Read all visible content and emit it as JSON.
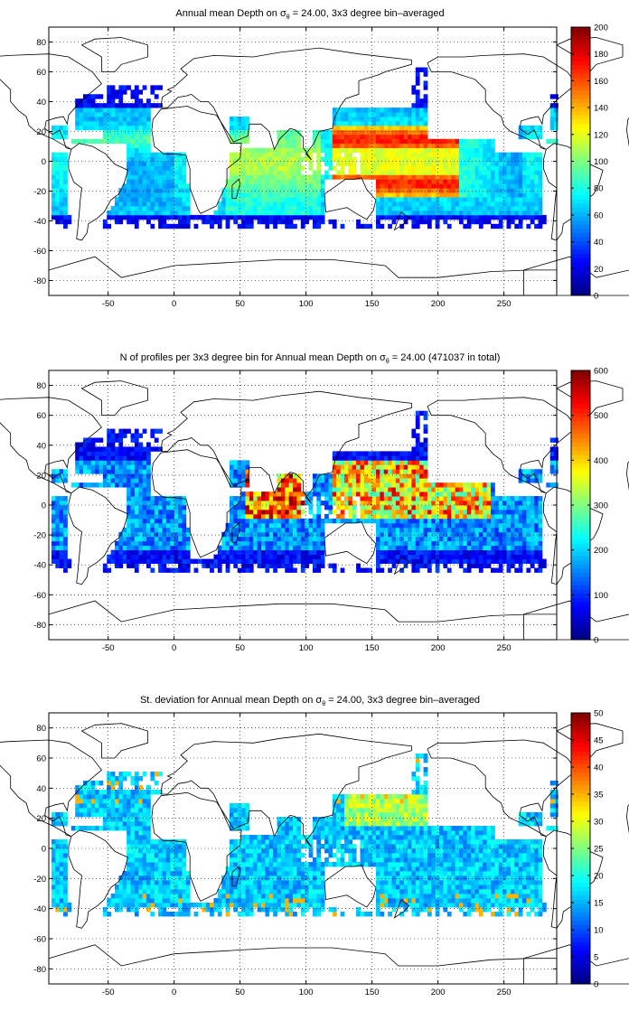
{
  "chart_data": [
    {
      "type": "heatmap",
      "panel": "mean",
      "title_parts": [
        "Annual mean Depth on ",
        "σ",
        "θ",
        " = 24.00, 3x3 degree bin–averaged"
      ],
      "xticks": [
        -50,
        0,
        50,
        100,
        150,
        200,
        250
      ],
      "yticks": [
        -80,
        -60,
        -40,
        -20,
        0,
        20,
        40,
        60,
        80
      ],
      "xlim": [
        -95,
        290
      ],
      "ylim": [
        -90,
        90
      ],
      "grid": "dotted",
      "colorbar": {
        "ticks": [
          0,
          20,
          40,
          60,
          80,
          100,
          120,
          140,
          160,
          180,
          200
        ],
        "range": [
          0,
          200
        ],
        "colormap": "jet"
      }
    },
    {
      "type": "heatmap",
      "panel": "count",
      "title_parts": [
        "N of profiles per 3x3 degree bin for Annual mean Depth on ",
        "σ",
        "θ",
        " = 24.00 (471037 in total)"
      ],
      "xticks": [
        -50,
        0,
        50,
        100,
        150,
        200,
        250
      ],
      "yticks": [
        -80,
        -60,
        -40,
        -20,
        0,
        20,
        40,
        60,
        80
      ],
      "xlim": [
        -95,
        290
      ],
      "ylim": [
        -90,
        90
      ],
      "grid": "dotted",
      "colorbar": {
        "ticks": [
          0,
          100,
          200,
          300,
          400,
          500,
          600
        ],
        "range": [
          0,
          600
        ],
        "colormap": "jet"
      }
    },
    {
      "type": "heatmap",
      "panel": "std",
      "title_parts": [
        "St. deviation for Annual mean Depth on ",
        "σ",
        "θ",
        " = 24.00, 3x3 degree bin–averaged"
      ],
      "xticks": [
        -50,
        0,
        50,
        100,
        150,
        200,
        250
      ],
      "yticks": [
        -80,
        -60,
        -40,
        -20,
        0,
        20,
        40,
        60,
        80
      ],
      "xlim": [
        -95,
        290
      ],
      "ylim": [
        -90,
        90
      ],
      "grid": "dotted",
      "colorbar": {
        "ticks": [
          0,
          5,
          10,
          15,
          20,
          25,
          30,
          35,
          40,
          45,
          50
        ],
        "range": [
          0,
          50
        ],
        "colormap": "jet"
      }
    }
  ]
}
